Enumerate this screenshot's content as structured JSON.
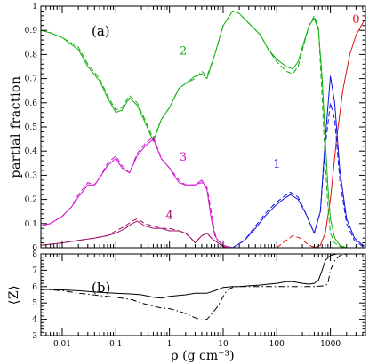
{
  "chart_data": [
    {
      "type": "line",
      "panel_label": "(a)",
      "ylabel": "partial fraction",
      "xlabel": "",
      "xscale": "log",
      "xlim": [
        0.004,
        4500
      ],
      "ylim": [
        0,
        1
      ],
      "xticks": [
        0.01,
        0.1,
        1,
        10,
        100,
        1000
      ],
      "xtick_labels": [
        "0.01",
        "0.1",
        "1",
        "10",
        "100",
        "1000"
      ],
      "yticks": [
        0,
        0.1,
        0.2,
        0.3,
        0.4,
        0.5,
        0.6,
        0.7,
        0.8,
        0.9,
        1
      ],
      "ytick_labels": [
        "0",
        "0.1",
        "0.2",
        "0.3",
        "0.4",
        "0.5",
        "0.6",
        "0.7",
        "0.8",
        "0.9",
        "1"
      ],
      "grid": false,
      "series": [
        {
          "name": "0",
          "color": "#e01010",
          "style": "solid",
          "x": [
            500,
            650,
            800,
            1000,
            1300,
            1700,
            2300,
            3000,
            4000,
            4500
          ],
          "y": [
            0,
            0.01,
            0.06,
            0.2,
            0.45,
            0.65,
            0.8,
            0.88,
            0.93,
            0.95
          ]
        },
        {
          "name": "0",
          "color": "#e01010",
          "style": "dashed",
          "x": [
            100,
            150,
            200,
            270,
            350,
            450,
            600
          ],
          "y": [
            0,
            0.03,
            0.05,
            0.04,
            0.02,
            0.005,
            0
          ]
        },
        {
          "name": "1",
          "color": "#1010e0",
          "style": "solid",
          "x": [
            15,
            25,
            40,
            60,
            90,
            130,
            180,
            250,
            350,
            500,
            650,
            800,
            1000,
            1200,
            1500,
            2000,
            2800,
            4000,
            4500
          ],
          "y": [
            0,
            0.03,
            0.08,
            0.13,
            0.17,
            0.2,
            0.22,
            0.2,
            0.14,
            0.06,
            0.15,
            0.45,
            0.71,
            0.6,
            0.32,
            0.12,
            0.04,
            0.01,
            0.005
          ]
        },
        {
          "name": "1",
          "color": "#1010e0",
          "style": "dashed",
          "x": [
            15,
            25,
            40,
            60,
            90,
            130,
            180,
            250,
            350,
            500,
            650,
            800,
            1000,
            1200,
            1500,
            2000,
            2800,
            4000
          ],
          "y": [
            0,
            0.03,
            0.09,
            0.14,
            0.18,
            0.21,
            0.23,
            0.21,
            0.14,
            0.06,
            0.15,
            0.42,
            0.6,
            0.53,
            0.28,
            0.1,
            0.03,
            0.005
          ]
        },
        {
          "name": "2",
          "color": "#10b010",
          "style": "solid",
          "x": [
            0.004,
            0.006,
            0.01,
            0.02,
            0.03,
            0.05,
            0.07,
            0.1,
            0.13,
            0.18,
            0.25,
            0.35,
            0.5,
            0.7,
            1,
            1.5,
            2,
            3,
            4,
            5,
            7,
            10,
            15,
            20,
            30,
            50,
            70,
            100,
            150,
            200,
            250,
            300,
            400,
            500,
            600,
            700,
            800,
            900,
            1000,
            1200,
            1500,
            2000
          ],
          "y": [
            0.9,
            0.89,
            0.87,
            0.82,
            0.75,
            0.69,
            0.62,
            0.56,
            0.57,
            0.62,
            0.59,
            0.52,
            0.44,
            0.53,
            0.58,
            0.66,
            0.68,
            0.71,
            0.72,
            0.7,
            0.8,
            0.92,
            0.98,
            0.97,
            0.93,
            0.88,
            0.82,
            0.78,
            0.75,
            0.74,
            0.77,
            0.83,
            0.92,
            0.95,
            0.9,
            0.7,
            0.45,
            0.25,
            0.12,
            0.04,
            0.01,
            0
          ]
        },
        {
          "name": "2",
          "color": "#10b010",
          "style": "dashed",
          "x": [
            0.004,
            0.006,
            0.01,
            0.02,
            0.03,
            0.05,
            0.07,
            0.1,
            0.13,
            0.18,
            0.25,
            0.35,
            0.5,
            0.7,
            1,
            1.5,
            2,
            3,
            4,
            5,
            7,
            10,
            15,
            20,
            30,
            50,
            70,
            100,
            150,
            200,
            250,
            300,
            400,
            500,
            600,
            700,
            800,
            900,
            1000,
            1200,
            1500,
            2000
          ],
          "y": [
            0.9,
            0.89,
            0.87,
            0.83,
            0.76,
            0.7,
            0.63,
            0.57,
            0.58,
            0.63,
            0.6,
            0.53,
            0.45,
            0.53,
            0.58,
            0.66,
            0.68,
            0.7,
            0.73,
            0.71,
            0.8,
            0.92,
            0.98,
            0.97,
            0.93,
            0.88,
            0.82,
            0.77,
            0.73,
            0.72,
            0.75,
            0.82,
            0.92,
            0.96,
            0.91,
            0.62,
            0.35,
            0.17,
            0.06,
            0.02,
            0.005,
            0
          ]
        },
        {
          "name": "3",
          "color": "#d010d0",
          "style": "solid",
          "x": [
            0.004,
            0.006,
            0.01,
            0.015,
            0.02,
            0.03,
            0.04,
            0.05,
            0.07,
            0.1,
            0.13,
            0.18,
            0.25,
            0.35,
            0.5,
            0.7,
            1,
            1.5,
            2,
            3,
            4,
            5,
            6,
            7,
            8,
            10,
            12,
            15
          ],
          "y": [
            0.09,
            0.1,
            0.13,
            0.17,
            0.21,
            0.26,
            0.26,
            0.29,
            0.34,
            0.37,
            0.33,
            0.31,
            0.38,
            0.42,
            0.45,
            0.37,
            0.33,
            0.27,
            0.26,
            0.26,
            0.28,
            0.24,
            0.12,
            0.05,
            0.03,
            0.01,
            0.005,
            0
          ]
        },
        {
          "name": "3",
          "color": "#d010d0",
          "style": "dashed",
          "x": [
            0.004,
            0.006,
            0.01,
            0.015,
            0.02,
            0.03,
            0.04,
            0.05,
            0.07,
            0.1,
            0.13,
            0.18,
            0.25,
            0.35,
            0.5,
            0.7,
            1,
            1.5,
            2,
            3,
            4,
            5,
            6,
            7,
            8,
            10,
            12,
            15
          ],
          "y": [
            0.09,
            0.1,
            0.13,
            0.17,
            0.22,
            0.27,
            0.26,
            0.29,
            0.35,
            0.38,
            0.34,
            0.31,
            0.39,
            0.43,
            0.46,
            0.37,
            0.33,
            0.28,
            0.26,
            0.26,
            0.27,
            0.25,
            0.15,
            0.06,
            0.03,
            0.01,
            0.005,
            0
          ]
        },
        {
          "name": "4",
          "color": "#a0106a",
          "style": "solid",
          "x": [
            0.004,
            0.01,
            0.02,
            0.04,
            0.07,
            0.1,
            0.15,
            0.2,
            0.25,
            0.35,
            0.5,
            0.7,
            1,
            1.5,
            2,
            2.5,
            3,
            4,
            5,
            6,
            8,
            10,
            12
          ],
          "y": [
            0.01,
            0.02,
            0.03,
            0.04,
            0.05,
            0.06,
            0.08,
            0.1,
            0.11,
            0.09,
            0.08,
            0.08,
            0.07,
            0.07,
            0.06,
            0.04,
            0.02,
            0.05,
            0.06,
            0.04,
            0.02,
            0.005,
            0
          ]
        },
        {
          "name": "4",
          "color": "#a0106a",
          "style": "dashed",
          "x": [
            0.004,
            0.01,
            0.02,
            0.04,
            0.07,
            0.1,
            0.15,
            0.2,
            0.25,
            0.35,
            0.5,
            0.7,
            1,
            1.5,
            2,
            2.5,
            3,
            4,
            5,
            6,
            8,
            10,
            12
          ],
          "y": [
            0.01,
            0.02,
            0.03,
            0.04,
            0.05,
            0.07,
            0.09,
            0.11,
            0.12,
            0.1,
            0.09,
            0.08,
            0.08,
            0.07,
            0.06,
            0.04,
            0.02,
            0.05,
            0.06,
            0.04,
            0.02,
            0.005,
            0
          ]
        }
      ],
      "series_labels": [
        {
          "text": "0",
          "x": 3000,
          "y": 0.93,
          "color": "#e01010"
        },
        {
          "text": "1",
          "x": 100,
          "y": 0.33,
          "color": "#1010e0"
        },
        {
          "text": "2",
          "x": 1.8,
          "y": 0.8,
          "color": "#10b010"
        },
        {
          "text": "3",
          "x": 1.8,
          "y": 0.36,
          "color": "#d010d0"
        },
        {
          "text": "4",
          "x": 1.0,
          "y": 0.12,
          "color": "#a0106a"
        }
      ]
    },
    {
      "type": "line",
      "panel_label": "(b)",
      "ylabel": "⟨Z⟩",
      "xlabel": "ρ (g cm⁻³)",
      "xscale": "log",
      "xlim": [
        0.004,
        4500
      ],
      "ylim": [
        3,
        8
      ],
      "xticks": [
        0.01,
        0.1,
        1,
        10,
        100,
        1000
      ],
      "xtick_labels": [
        "0.01",
        "0.1",
        "1",
        "10",
        "100",
        "1000"
      ],
      "yticks": [
        3,
        4,
        5,
        6,
        7,
        8
      ],
      "ytick_labels": [
        "3",
        "4",
        "5",
        "6",
        "7",
        "8"
      ],
      "grid": false,
      "series": [
        {
          "name": "",
          "color": "#000000",
          "style": "solid",
          "x": [
            0.004,
            0.01,
            0.02,
            0.05,
            0.1,
            0.2,
            0.3,
            0.5,
            0.7,
            1,
            2,
            3,
            5,
            7,
            10,
            15,
            20,
            30,
            50,
            70,
            100,
            150,
            200,
            300,
            400,
            500,
            600,
            700,
            800,
            1000,
            1300,
            2000,
            4500
          ],
          "y": [
            5.85,
            5.8,
            5.75,
            5.65,
            5.6,
            5.55,
            5.5,
            5.35,
            5.3,
            5.4,
            5.5,
            5.6,
            5.6,
            5.75,
            5.95,
            6.0,
            6.0,
            6.05,
            6.1,
            6.15,
            6.2,
            6.3,
            6.3,
            6.2,
            6.15,
            6.2,
            6.4,
            7.0,
            7.6,
            7.9,
            8.0,
            8.0,
            8.0
          ]
        },
        {
          "name": "",
          "color": "#000000",
          "style": "dashdot",
          "x": [
            0.004,
            0.01,
            0.02,
            0.05,
            0.1,
            0.2,
            0.3,
            0.5,
            0.7,
            1,
            1.5,
            2,
            3,
            4,
            5,
            6,
            8,
            10,
            12,
            15,
            20,
            50,
            100,
            200,
            500,
            800,
            900,
            1000,
            1200,
            1500,
            2000,
            3000,
            4500
          ],
          "y": [
            5.85,
            5.75,
            5.6,
            5.45,
            5.35,
            5.2,
            5.0,
            4.8,
            4.7,
            4.65,
            4.5,
            4.35,
            4.1,
            3.95,
            4.0,
            4.3,
            4.8,
            5.4,
            5.8,
            5.95,
            6.0,
            6.0,
            6.0,
            6.0,
            6.0,
            6.05,
            6.2,
            7.0,
            7.6,
            7.9,
            8.0,
            8.0,
            8.0
          ]
        }
      ]
    }
  ]
}
